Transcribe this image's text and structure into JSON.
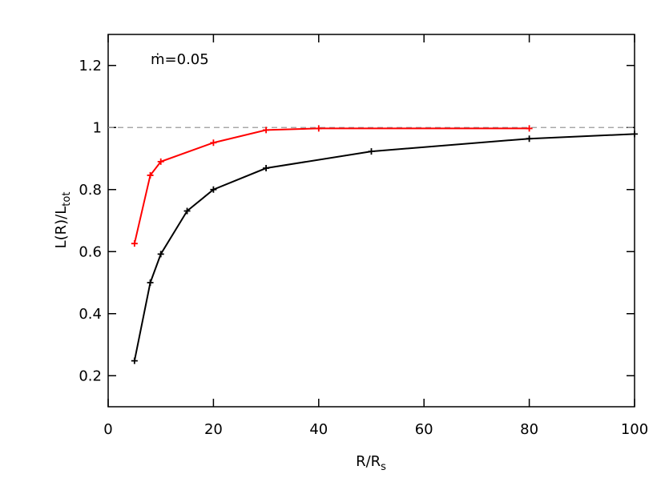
{
  "chart_data": {
    "type": "line",
    "annotation": "ṁ=0.05",
    "xlabel": {
      "main": "R/R",
      "sub": "s"
    },
    "ylabel": {
      "main": "L(R)/L",
      "sub": "tot"
    },
    "xlim": [
      0,
      100
    ],
    "xticks": [
      0,
      20,
      40,
      60,
      80,
      100
    ],
    "ylim": [
      0.1,
      1.3
    ],
    "yticks": [
      0.2,
      0.4,
      0.6,
      0.8,
      1.0,
      1.2
    ],
    "hline": 1.0,
    "hline_color": "#999999",
    "series": [
      {
        "color": "#000000",
        "x": [
          5,
          8,
          10,
          15,
          20,
          30,
          50,
          80,
          100
        ],
        "values": [
          0.248,
          0.5,
          0.592,
          0.731,
          0.8,
          0.869,
          0.923,
          0.964,
          0.979
        ]
      },
      {
        "color": "#ff0000",
        "x": [
          5,
          8,
          10,
          20,
          30,
          40,
          80
        ],
        "values": [
          0.626,
          0.846,
          0.89,
          0.951,
          0.992,
          0.997,
          0.997
        ]
      }
    ]
  }
}
